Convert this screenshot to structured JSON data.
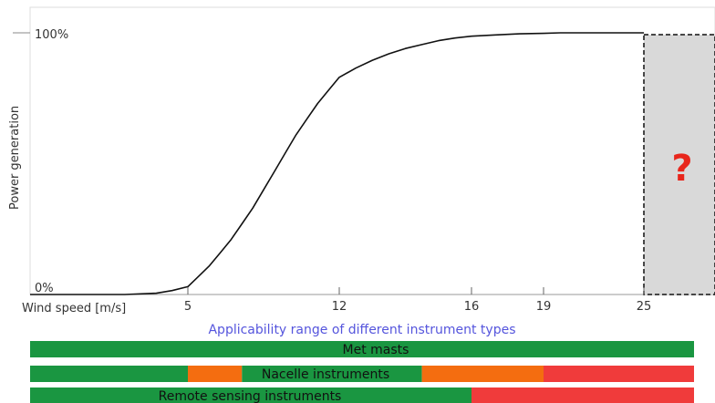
{
  "chart_data": {
    "type": "line",
    "title": "",
    "ylabel": "Power generation",
    "xlabel": "Wind speed [m/s]",
    "x_ticks": [
      5,
      12,
      16,
      19,
      25
    ],
    "y_tick_labels": {
      "bottom": "0%",
      "top": "100%"
    },
    "xlim": [
      0,
      28
    ],
    "ylim": [
      0,
      100
    ],
    "series": [
      {
        "x": [
          0,
          3,
          4,
          4.5,
          5,
          5.5,
          6,
          6.5,
          7,
          7.5,
          8,
          8.5,
          9,
          9.5,
          10,
          10.5,
          11,
          11.5,
          12,
          12.5,
          13,
          13.5,
          14,
          14.5,
          15,
          15.5,
          16,
          17,
          18,
          19,
          20,
          21,
          22,
          23,
          24,
          25
        ],
        "y": [
          0,
          0,
          0.5,
          1.5,
          3,
          7,
          11,
          16,
          21,
          27,
          33,
          40,
          47,
          54,
          61,
          67,
          73,
          78,
          83,
          86.5,
          89.5,
          92,
          94,
          95.5,
          97,
          98,
          98.7,
          99.2,
          99.6,
          99.8,
          100,
          100,
          100,
          100,
          100,
          100
        ]
      }
    ],
    "unknown_region": {
      "x_start": 25,
      "label": "?"
    },
    "subtitle": "Applicability range of different instrument types",
    "instrument_bars": [
      {
        "name": "Met masts",
        "segments": [
          {
            "from": 0,
            "to": 28,
            "color": "#1a9641"
          }
        ]
      },
      {
        "name": "Nacelle instruments",
        "segments": [
          {
            "from": 0,
            "to": 5,
            "color": "#1a9641"
          },
          {
            "from": 5,
            "to": 7.5,
            "color": "#f46d10"
          },
          {
            "from": 7.5,
            "to": 14.5,
            "color": "#1a9641"
          },
          {
            "from": 14.5,
            "to": 19,
            "color": "#f46d10"
          },
          {
            "from": 19,
            "to": 28,
            "color": "#f03b3b"
          }
        ]
      },
      {
        "name": "Remote sensing instruments",
        "segments": [
          {
            "from": 0,
            "to": 16,
            "color": "#1a9641"
          },
          {
            "from": 16,
            "to": 28,
            "color": "#f03b3b"
          }
        ]
      }
    ],
    "colors": {
      "curve": "#111111",
      "unknown_fill": "#d9d9d9",
      "question": "#e8261c",
      "subtitle": "#5555dd"
    },
    "grid": false
  }
}
